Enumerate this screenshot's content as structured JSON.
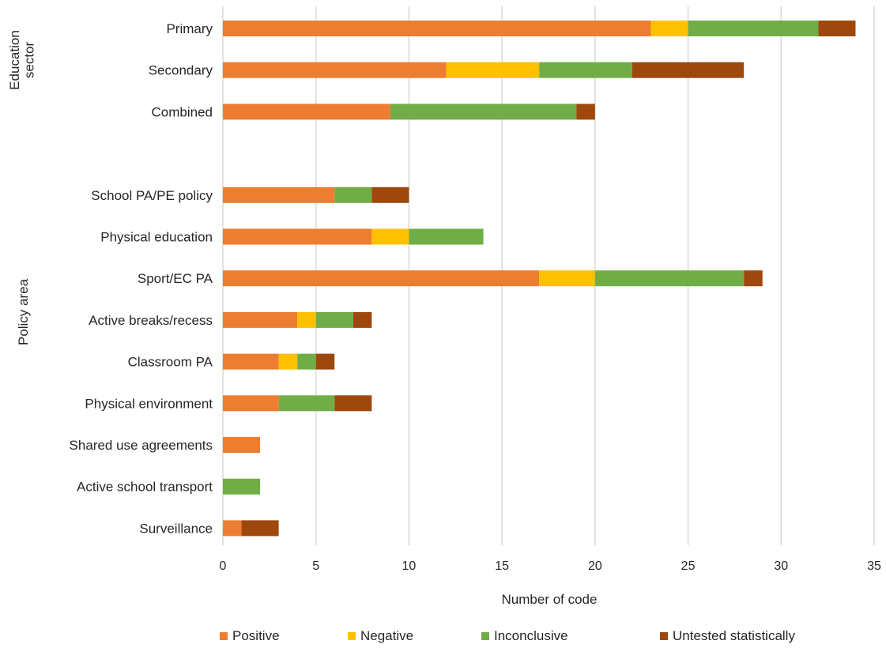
{
  "chart_data": {
    "type": "bar",
    "orientation": "horizontal",
    "stacked": true,
    "title": "",
    "xlabel": "Number of code",
    "xlim": [
      0,
      35
    ],
    "xticks": [
      0,
      5,
      10,
      15,
      20,
      25,
      30,
      35
    ],
    "grid": "vertical",
    "legend_position": "bottom",
    "groups": [
      {
        "label_lines": [
          "Education",
          "sector"
        ],
        "categories": [
          "Primary",
          "Secondary",
          "Combined"
        ]
      },
      {
        "label_lines": [
          "Policy area"
        ],
        "categories": [
          "School PA/PE policy",
          "Physical education",
          "Sport/EC PA",
          "Active breaks/recess",
          "Classroom PA",
          "Physical environment",
          "Shared use agreements",
          "Active school transport",
          "Surveillance"
        ]
      }
    ],
    "categories": [
      "Primary",
      "Secondary",
      "Combined",
      "",
      "School PA/PE policy",
      "Physical education",
      "Sport/EC PA",
      "Active breaks/recess",
      "Classroom PA",
      "Physical environment",
      "Shared use agreements",
      "Active school transport",
      "Surveillance"
    ],
    "series": [
      {
        "name": "Positive",
        "color": "#ED7D31",
        "values": [
          23,
          12,
          9,
          0,
          6,
          8,
          17,
          4,
          3,
          3,
          2,
          0,
          1
        ]
      },
      {
        "name": "Negative",
        "color": "#FFC000",
        "values": [
          2,
          5,
          0,
          0,
          0,
          2,
          3,
          1,
          1,
          0,
          0,
          0,
          0
        ]
      },
      {
        "name": "Inconclusive",
        "color": "#70AD47",
        "values": [
          7,
          5,
          10,
          0,
          2,
          4,
          8,
          2,
          1,
          3,
          0,
          2,
          0
        ]
      },
      {
        "name": "Untested statistically",
        "color": "#9E480E",
        "values": [
          2,
          6,
          1,
          0,
          2,
          0,
          1,
          1,
          1,
          2,
          0,
          0,
          2
        ]
      }
    ]
  }
}
